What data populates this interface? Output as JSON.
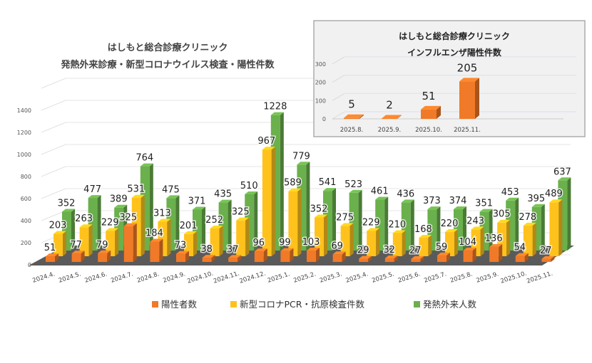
{
  "chart_data": [
    {
      "type": "bar",
      "title": [
        "はしもと総合診療クリニック",
        "発熱外来診療・新型コロナウイルス検査・陽性件数"
      ],
      "categories": [
        "2024.4.",
        "2024.5.",
        "2024.6.",
        "2024.7.",
        "2024.8.",
        "2024.9.",
        "2024.10.",
        "2024.11.",
        "2024.12.",
        "2025.1.",
        "2025.2.",
        "2025.3.",
        "2025.4.",
        "2025.5.",
        "2025.6.",
        "2025.7.",
        "2025.8.",
        "2025.9.",
        "2025.10.",
        "2025.11."
      ],
      "series": [
        {
          "name": "陽性者数",
          "color": "#f07a28",
          "values": [
            51,
            77,
            79,
            325,
            184,
            73,
            38,
            37,
            96,
            99,
            103,
            69,
            29,
            32,
            27,
            59,
            104,
            136,
            54,
            27
          ]
        },
        {
          "name": "新型コロナPCR・抗原検査件数",
          "color": "#ffc21c",
          "values": [
            203,
            263,
            229,
            531,
            313,
            201,
            252,
            325,
            967,
            589,
            352,
            275,
            229,
            210,
            168,
            220,
            243,
            305,
            278,
            489
          ]
        },
        {
          "name": "発熱外来人数",
          "color": "#6ab04c",
          "values": [
            352,
            477,
            389,
            764,
            475,
            371,
            435,
            510,
            1228,
            779,
            541,
            523,
            461,
            436,
            373,
            374,
            351,
            453,
            395,
            637
          ]
        }
      ],
      "yticks": [
        0,
        200,
        400,
        600,
        800,
        1000,
        1200,
        1400
      ],
      "ylim": [
        0,
        1600
      ],
      "grid": true,
      "legend": "bottom",
      "style": "3d-column"
    },
    {
      "type": "bar",
      "title": [
        "はしもと総合診療クリニック",
        "インフルエンザ陽性件数"
      ],
      "categories": [
        "2025.8.",
        "2025.9.",
        "2025.10.",
        "2025.11."
      ],
      "series": [
        {
          "color": "#f07a28",
          "values": [
            5,
            2,
            51,
            205
          ]
        }
      ],
      "yticks": [
        0,
        100,
        200,
        300
      ],
      "ylim": [
        0,
        300
      ],
      "grid": true,
      "style": "3d-column"
    }
  ]
}
